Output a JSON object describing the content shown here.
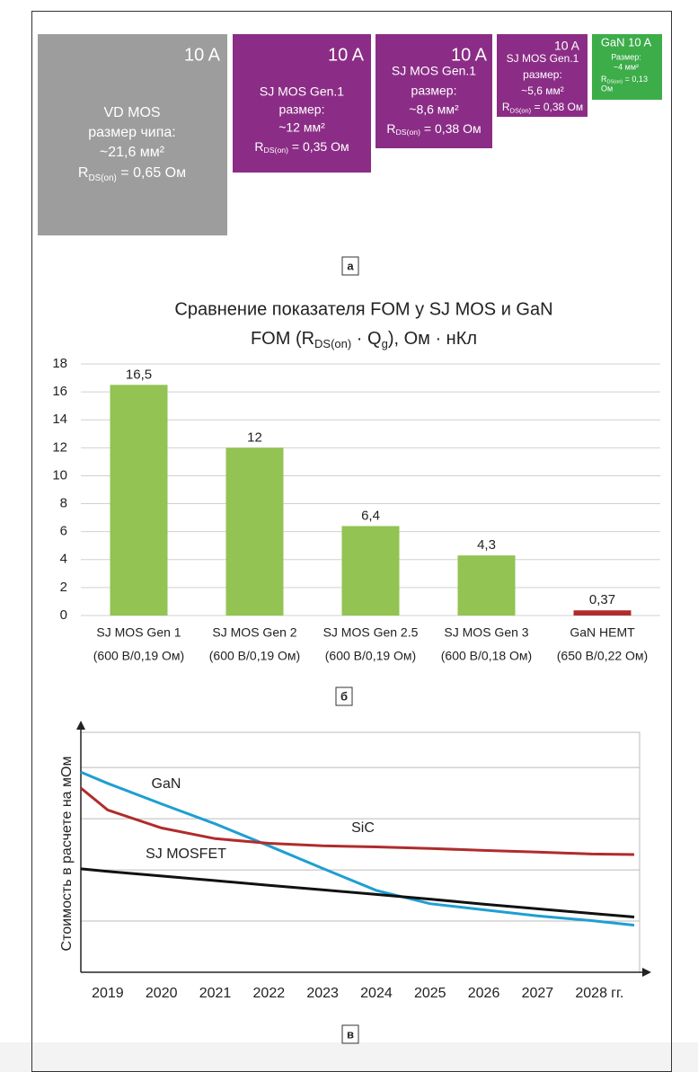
{
  "panel_a": {
    "label": "а",
    "chips": [
      {
        "color": "#9d9d9d",
        "current": "10 A",
        "lines": [
          "VD MOS",
          "размер чипа:",
          "~21,6 мм²"
        ],
        "r": {
          "symbol": "R",
          "sub": "DS(on)",
          "value": " = 0,65 Ом"
        },
        "after_lines": []
      },
      {
        "color": "#8b2d86",
        "current": "10 A",
        "lines": [
          "SJ MOS Gen.1",
          "размер:",
          "~12 мм²"
        ],
        "r": {
          "symbol": "R",
          "sub": "DS(on)",
          "value": " = 0,35 Ом"
        },
        "after_lines": []
      },
      {
        "color": "#8b2d86",
        "current": "10 A",
        "lines": [
          "SJ MOS Gen.1",
          "размер:",
          "~8,6 мм²"
        ],
        "r": {
          "symbol": "R",
          "sub": "DS(on)",
          "value": " = 0,38 Ом"
        },
        "after_lines": []
      },
      {
        "color": "#8b2d86",
        "current": "10 A",
        "lines": [
          "SJ MOS Gen.1",
          "размер:",
          "~5,6 мм²"
        ],
        "r": {
          "symbol": "R",
          "sub": "DS(on)",
          "value": " = 0,38 Ом"
        },
        "after_lines": []
      },
      {
        "color": "#3cad49",
        "current": "GaN 10 A",
        "lines": [
          "Размер:",
          "~4 мм²"
        ],
        "r": {
          "symbol": "R",
          "sub": "DS(on)",
          "value": " = 0,13"
        },
        "after_lines": [
          "Ом"
        ]
      }
    ]
  },
  "chart_data": [
    {
      "type": "bar",
      "label": "б",
      "title": "Сравнение показателя FOM у SJ MOS и GaN",
      "subtitle": [
        "FOM (R",
        "DS(on)",
        " · Q",
        "g",
        "), Ом · нКл"
      ],
      "categories": [
        "SJ MOS Gen 1",
        "SJ MOS Gen 2",
        "SJ MOS Gen 2.5",
        "SJ MOS Gen 3",
        "GaN HEMT"
      ],
      "category_notes": [
        "(600 В/0,19 Ом)",
        "(600 В/0,19 Ом)",
        "(600 В/0,19 Ом)",
        "(600 В/0,18 Ом)",
        "(650 В/0,22 Ом)"
      ],
      "values": [
        16.5,
        12,
        6.4,
        4.3,
        0.37
      ],
      "value_labels": [
        "16,5",
        "12",
        "6,4",
        "4,3",
        "0,37"
      ],
      "colors": [
        "#92c353",
        "#92c353",
        "#92c353",
        "#92c353",
        "#b02c2c"
      ],
      "ylim": [
        0,
        18
      ],
      "yticks": [
        0,
        2,
        4,
        6,
        8,
        10,
        12,
        14,
        16,
        18
      ],
      "grid": true
    },
    {
      "type": "line",
      "label": "в",
      "y_label": "Стоимость в расчете на мОм",
      "x_unit": "гг.",
      "x": [
        2018.5,
        2019,
        2020,
        2021,
        2022,
        2023,
        2024,
        2025,
        2026,
        2027,
        2028,
        2028.8
      ],
      "xlim": [
        2018.5,
        2028.9
      ],
      "xticks": [
        2019,
        2020,
        2021,
        2022,
        2023,
        2024,
        2025,
        2026,
        2027,
        2028
      ],
      "ylim": [
        0,
        4.6
      ],
      "yticks": [
        1,
        2,
        3,
        4
      ],
      "ytick_labels": false,
      "grid": true,
      "series": [
        {
          "name": "GaN",
          "color": "#1e9fd2",
          "values": [
            3.91,
            3.69,
            3.29,
            2.9,
            2.47,
            2.03,
            1.6,
            1.34,
            1.22,
            1.1,
            1.01,
            0.92
          ]
        },
        {
          "name": "SiC",
          "color": "#b02c2c",
          "values": [
            3.6,
            3.17,
            2.82,
            2.61,
            2.52,
            2.47,
            2.45,
            2.42,
            2.38,
            2.35,
            2.31,
            2.3
          ]
        },
        {
          "name": "SJ MOSFET",
          "color": "#111111",
          "values": [
            2.02,
            1.97,
            1.88,
            1.79,
            1.7,
            1.61,
            1.52,
            1.43,
            1.33,
            1.24,
            1.15,
            1.08
          ]
        }
      ]
    }
  ]
}
